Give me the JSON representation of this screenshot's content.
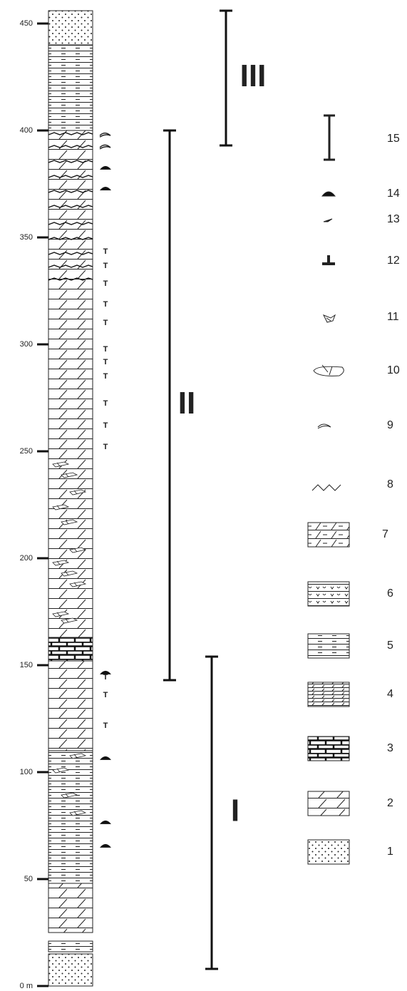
{
  "axis": {
    "ylim": [
      0,
      456
    ],
    "yticks": [
      {
        "value": 0,
        "label": "0 m"
      },
      50,
      100,
      150,
      200,
      250,
      300,
      350,
      400,
      450
    ]
  },
  "layers": [
    {
      "from": 0,
      "to": 15,
      "lithology": 1
    },
    {
      "from": 16,
      "to": 21,
      "lithology": 5
    },
    {
      "from": 25,
      "to": 48,
      "lithology": 2
    },
    {
      "from": 48,
      "to": 110,
      "lithology": 5
    },
    {
      "from": 110,
      "to": 152,
      "lithology": 2
    },
    {
      "from": 152,
      "to": 163,
      "lithology": 3
    },
    {
      "from": 163,
      "to": 400,
      "lithology": 2
    },
    {
      "from": 400,
      "to": 440,
      "lithology": 5
    },
    {
      "from": 440,
      "to": 456,
      "lithology": 1
    }
  ],
  "symbols": {
    "trace_label": "T",
    "trace": [
      343.3,
      336.7,
      328.3,
      318.7,
      310,
      297.7,
      291.7,
      285,
      272.3,
      262,
      252,
      144.3,
      136,
      121.7
    ],
    "nodule": [
      382.7,
      373,
      146.7,
      106.7,
      76.7,
      65.7
    ],
    "wavy": [
      398.3,
      392.7
    ],
    "breccia": [
      244,
      239,
      231,
      224,
      217,
      204,
      198,
      193,
      188,
      174,
      171,
      107.7,
      101,
      89.3,
      81
    ],
    "stylolite": [
      398,
      392,
      385,
      378,
      371,
      364,
      356,
      349,
      342,
      336,
      330
    ]
  },
  "units": [
    {
      "label": "III",
      "range": [
        393,
        456
      ]
    },
    {
      "label": "II",
      "range": [
        143,
        400
      ]
    },
    {
      "label": "I",
      "range": [
        8,
        154
      ]
    }
  ],
  "legend": [
    "1",
    "2",
    "3",
    "4",
    "5",
    "6",
    "7",
    "8",
    "9",
    "10",
    "11",
    "12",
    "13",
    "14",
    "15"
  ]
}
